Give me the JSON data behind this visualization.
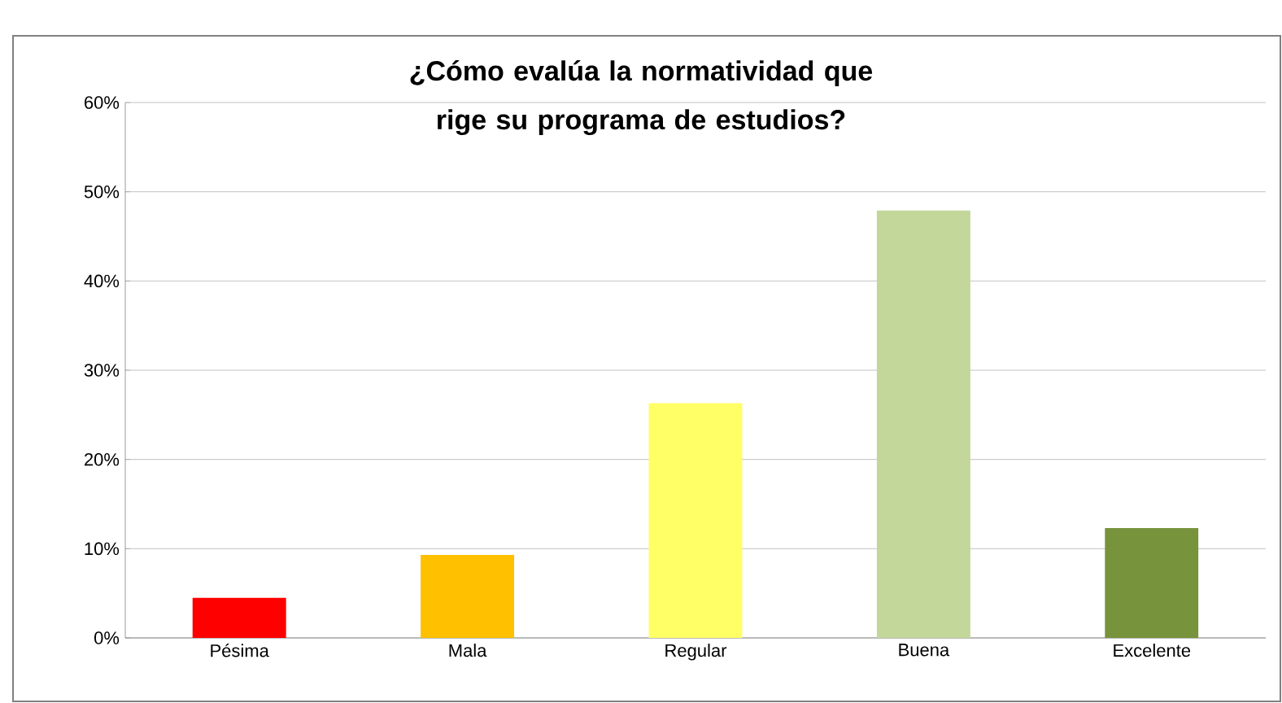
{
  "chart_data": {
    "type": "bar",
    "title": "¿Cómo evalúa la normatividad que rige su programa de estudios?",
    "categories": [
      "Pésima",
      "Mala",
      "Regular",
      "Buena",
      "Excelente"
    ],
    "values": [
      4.5,
      9.3,
      26.3,
      47.9,
      12.3
    ],
    "colors": [
      "#ff0000",
      "#ffc000",
      "#ffff66",
      "#c4d79b",
      "#77933c"
    ],
    "ylim": [
      0,
      60
    ],
    "yticks": [
      {
        "value": 0,
        "label": "0%"
      },
      {
        "value": 10,
        "label": "10%"
      },
      {
        "value": 20,
        "label": "20%"
      },
      {
        "value": 30,
        "label": "30%"
      },
      {
        "value": 40,
        "label": "40%"
      },
      {
        "value": 50,
        "label": "50%"
      },
      {
        "value": 60,
        "label": "60%"
      }
    ],
    "grid": "y"
  }
}
